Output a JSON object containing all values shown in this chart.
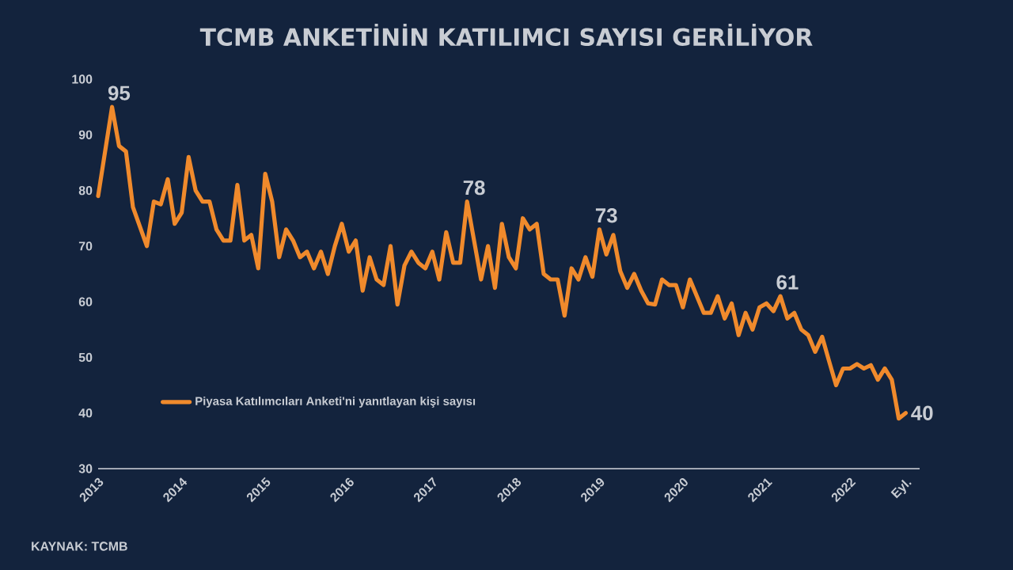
{
  "chart_data": {
    "type": "line",
    "title": "TCMB ANKETİNİN KATILIMCI SAYISI GERİLİYOR",
    "x": [
      "2013-01",
      "2013-03",
      "2013-04",
      "2013-05",
      "2013-06",
      "2013-08",
      "2013-09",
      "2013-10",
      "2013-11",
      "2013-12",
      "2014-01",
      "2014-02",
      "2014-03",
      "2014-04",
      "2014-05",
      "2014-06",
      "2014-07",
      "2014-08",
      "2014-09",
      "2014-10",
      "2014-11",
      "2014-12",
      "2015-01",
      "2015-02",
      "2015-03",
      "2015-04",
      "2015-05",
      "2015-06",
      "2015-07",
      "2015-08",
      "2015-09",
      "2015-10",
      "2015-11",
      "2015-12",
      "2016-01",
      "2016-02",
      "2016-03",
      "2016-04",
      "2016-05",
      "2016-06",
      "2016-07",
      "2016-08",
      "2016-09",
      "2016-10",
      "2016-11",
      "2016-12",
      "2017-01",
      "2017-02",
      "2017-03",
      "2017-04",
      "2017-05",
      "2017-06",
      "2017-07",
      "2017-08",
      "2017-09",
      "2017-10",
      "2017-11",
      "2017-12",
      "2018-01",
      "2018-02",
      "2018-03",
      "2018-04",
      "2018-05",
      "2018-06",
      "2018-07",
      "2018-08",
      "2018-09",
      "2018-10",
      "2018-11",
      "2018-12",
      "2019-01",
      "2019-02",
      "2019-03",
      "2019-04",
      "2019-05",
      "2019-06",
      "2019-07",
      "2019-08",
      "2019-09",
      "2019-10",
      "2019-11",
      "2019-12",
      "2020-01",
      "2020-02",
      "2020-03",
      "2020-04",
      "2020-05",
      "2020-06",
      "2020-07",
      "2020-08",
      "2020-09",
      "2020-10",
      "2020-11",
      "2020-12",
      "2021-01",
      "2021-02",
      "2021-03",
      "2021-04",
      "2021-05",
      "2021-06",
      "2021-07",
      "2021-08",
      "2021-09",
      "2021-10",
      "2021-11",
      "2021-12",
      "2022-01",
      "2022-02",
      "2022-03",
      "2022-04",
      "2022-05",
      "2022-06",
      "2022-07",
      "2022-08",
      "2022-09"
    ],
    "series": [
      {
        "name": "Piyasa Katılımcıları Anketi'ni yanıtlayan kişi sayısı",
        "color": "#f08a2c",
        "values": [
          79,
          95,
          88,
          87,
          77,
          70,
          78,
          77.5,
          82,
          74,
          76,
          86,
          80,
          78,
          78,
          73,
          71,
          71,
          81,
          71,
          72,
          66,
          83,
          78,
          68,
          73,
          71,
          68,
          69,
          66,
          69,
          65,
          70,
          74,
          69,
          71,
          62,
          68,
          64,
          63,
          70,
          59.5,
          66.5,
          69,
          67,
          66,
          69,
          64,
          72.5,
          67,
          67,
          78,
          71,
          64,
          70,
          62.5,
          74,
          68,
          66,
          75,
          73,
          74,
          65,
          64,
          64,
          57.5,
          66,
          64,
          68,
          64.5,
          73,
          68.5,
          72,
          65.5,
          62.5,
          65,
          62,
          59.7,
          59.5,
          64,
          63,
          63,
          59,
          64,
          61,
          58,
          58,
          61,
          57,
          59.7,
          54,
          58,
          55,
          59,
          59.7,
          58.3,
          61,
          57,
          58,
          55,
          54,
          51,
          53.7,
          49.3,
          45,
          48,
          48,
          48.8,
          48,
          48.6,
          46,
          48,
          46,
          39,
          40
        ]
      }
    ],
    "xlim": [
      "2013-01",
      "2022-11"
    ],
    "xticks": [
      {
        "value": "2013-01",
        "label": "2013"
      },
      {
        "value": "2014-01",
        "label": "2014"
      },
      {
        "value": "2015-01",
        "label": "2015"
      },
      {
        "value": "2016-01",
        "label": "2016"
      },
      {
        "value": "2017-01",
        "label": "2017"
      },
      {
        "value": "2018-01",
        "label": "2018"
      },
      {
        "value": "2019-01",
        "label": "2019"
      },
      {
        "value": "2020-01",
        "label": "2020"
      },
      {
        "value": "2021-01",
        "label": "2021"
      },
      {
        "value": "2022-01",
        "label": "2022"
      },
      {
        "value": "2022-09",
        "label": "Eyl."
      }
    ],
    "ylim": [
      30,
      100
    ],
    "yticks": [
      30,
      40,
      50,
      60,
      70,
      80,
      90,
      100
    ],
    "legend": "bottom left",
    "annotations": [
      {
        "text": "95",
        "x": "2013-03",
        "y": 95
      },
      {
        "text": "78",
        "x": "2017-06",
        "y": 78
      },
      {
        "text": "73",
        "x": "2019-01",
        "y": 73
      },
      {
        "text": "61",
        "x": "2021-03",
        "y": 61
      },
      {
        "text": "40",
        "x": "2022-09",
        "y": 40
      },
      "KAYNAK: TCMB"
    ]
  }
}
